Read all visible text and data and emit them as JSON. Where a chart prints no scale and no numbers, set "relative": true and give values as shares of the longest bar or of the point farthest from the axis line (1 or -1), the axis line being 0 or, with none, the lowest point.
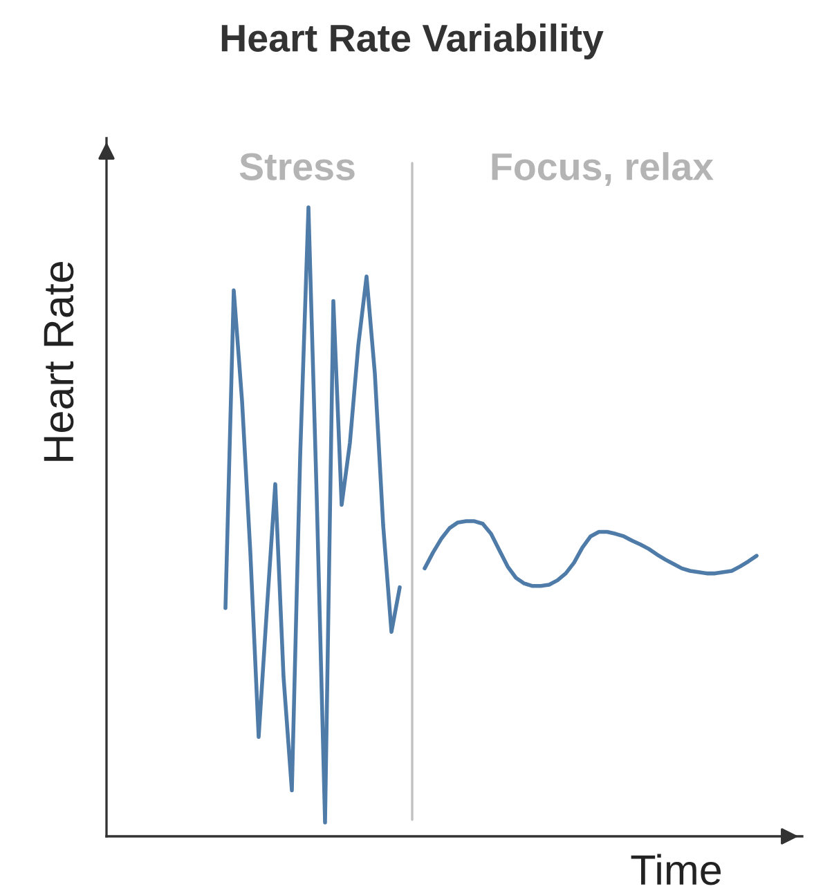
{
  "chart_data": {
    "type": "line",
    "title": "Heart Rate Variability",
    "xlabel": "Time",
    "ylabel": "Heart Rate",
    "relative": true,
    "categories": [
      null,
      null,
      null,
      null,
      null,
      null,
      null,
      null,
      null,
      null,
      null,
      null,
      null,
      null,
      null,
      null,
      null,
      null,
      null,
      null,
      null,
      null,
      null,
      null,
      null,
      null,
      null,
      null,
      null,
      null,
      null,
      null,
      null,
      null,
      null,
      null,
      null,
      null,
      null,
      null,
      null,
      null,
      null,
      null,
      null,
      null,
      null,
      null,
      null,
      null,
      null,
      null,
      null,
      null,
      null,
      null,
      null,
      null,
      null,
      null,
      null,
      null,
      null,
      null,
      null
    ],
    "series": [
      {
        "color": "#4f7ba8",
        "values": [
          0.363,
          0.868,
          0.692,
          0.451,
          0.158,
          0.363,
          0.56,
          0.253,
          0.073,
          0.604,
          1.0,
          0.538,
          0.022,
          0.851,
          0.527,
          0.626,
          0.78,
          0.89,
          0.736,
          0.495,
          0.325,
          0.396,
          null,
          null,
          null,
          null,
          null,
          null,
          null,
          null,
          null,
          null,
          null,
          null,
          null,
          null,
          null,
          null,
          null,
          null,
          null,
          null,
          null,
          null,
          null,
          null,
          null,
          null,
          null,
          null,
          null,
          null,
          null,
          null,
          null,
          null,
          null,
          null,
          null,
          null,
          null,
          null,
          null,
          null,
          null
        ]
      },
      {
        "color": "#4f7ba8",
        "values": [
          null,
          null,
          null,
          null,
          null,
          null,
          null,
          null,
          null,
          null,
          null,
          null,
          null,
          null,
          null,
          null,
          null,
          null,
          null,
          null,
          null,
          null,
          null,
          null,
          0.426,
          0.451,
          0.473,
          0.49,
          0.499,
          0.501,
          0.501,
          0.497,
          0.481,
          0.455,
          0.429,
          0.411,
          0.402,
          0.398,
          0.398,
          0.4,
          0.407,
          0.418,
          0.435,
          0.459,
          0.477,
          0.484,
          0.484,
          0.481,
          0.477,
          0.47,
          0.464,
          0.457,
          0.448,
          0.44,
          0.433,
          0.426,
          0.422,
          0.42,
          0.418,
          0.418,
          0.42,
          0.422,
          0.429,
          0.437,
          0.446
        ]
      }
    ],
    "annotations": [
      "Stress",
      "Focus, relax"
    ],
    "legend": false
  }
}
